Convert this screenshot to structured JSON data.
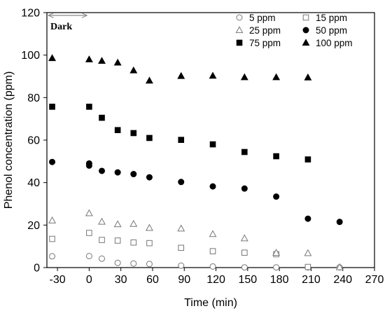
{
  "chart_data": {
    "type": "scatter",
    "xlabel": "Time (min)",
    "ylabel": "Phenol concentration (ppm)",
    "xlim": [
      -40,
      270
    ],
    "ylim": [
      0,
      120
    ],
    "xticks": [
      -30,
      0,
      30,
      60,
      90,
      120,
      150,
      180,
      210,
      240,
      270
    ],
    "yticks": [
      0,
      20,
      40,
      60,
      80,
      100,
      120
    ],
    "grid": false,
    "legend_position": "top-right",
    "annotation": "Dark",
    "series": [
      {
        "name": "5 ppm",
        "marker": "open-circle",
        "x": [
          -35,
          0,
          12,
          27,
          42,
          57,
          87,
          117,
          147,
          177,
          207,
          237
        ],
        "y": [
          5.3,
          5.4,
          4.2,
          2.2,
          1.9,
          1.7,
          0.9,
          0.5,
          0.1,
          0.1,
          0.1,
          0.1
        ]
      },
      {
        "name": "15 ppm",
        "marker": "open-square",
        "x": [
          -35,
          0,
          12,
          27,
          42,
          57,
          87,
          117,
          147,
          177,
          207
        ],
        "y": [
          13.5,
          16.3,
          13.0,
          12.7,
          11.8,
          11.5,
          9.3,
          7.7,
          7.0,
          6.3,
          0.3
        ]
      },
      {
        "name": "25 ppm",
        "marker": "open-triangle",
        "x": [
          -35,
          0,
          12,
          27,
          42,
          57,
          87,
          117,
          147,
          177,
          207,
          237
        ],
        "y": [
          22.2,
          25.6,
          21.6,
          20.4,
          20.6,
          18.7,
          18.4,
          15.8,
          13.8,
          7.0,
          6.8,
          0.2
        ]
      },
      {
        "name": "50 ppm",
        "marker": "filled-circle",
        "x": [
          -35,
          0,
          0,
          12,
          27,
          42,
          57,
          87,
          117,
          147,
          177,
          207,
          237
        ],
        "y": [
          49.7,
          48.0,
          49.0,
          45.5,
          44.8,
          44.0,
          42.5,
          40.3,
          38.2,
          37.2,
          33.4,
          23.0,
          21.5
        ]
      },
      {
        "name": "75 ppm",
        "marker": "filled-square",
        "x": [
          -35,
          0,
          12,
          27,
          42,
          57,
          87,
          117,
          147,
          177,
          207
        ],
        "y": [
          75.7,
          75.7,
          70.5,
          64.7,
          63.3,
          61.0,
          60.1,
          58.0,
          54.4,
          52.4,
          50.9
        ]
      },
      {
        "name": "100 ppm",
        "marker": "filled-triangle",
        "x": [
          -35,
          0,
          12,
          27,
          42,
          57,
          87,
          117,
          147,
          177,
          207
        ],
        "y": [
          98.6,
          98.0,
          97.3,
          96.5,
          92.8,
          88.0,
          90.2,
          90.3,
          89.6,
          89.6,
          89.5
        ]
      }
    ]
  }
}
